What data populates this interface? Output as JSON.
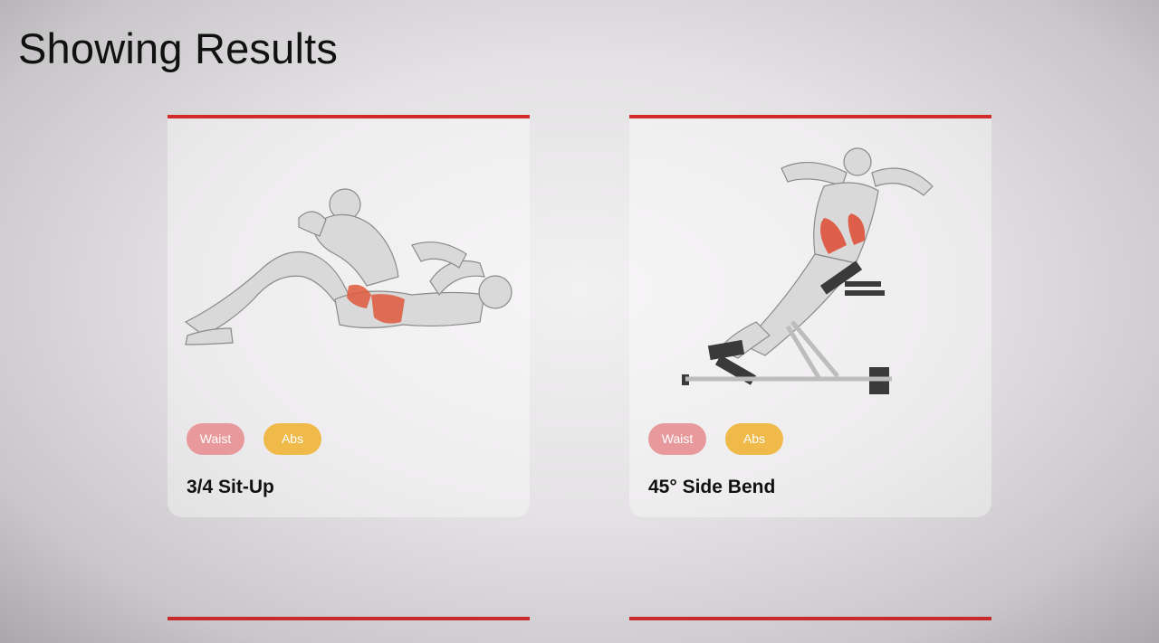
{
  "page": {
    "title": "Showing Results"
  },
  "results": [
    {
      "name": "3/4 Sit-Up",
      "tags": [
        "Waist",
        "Abs"
      ]
    },
    {
      "name": "45° Side Bend",
      "tags": [
        "Waist",
        "Abs"
      ]
    }
  ],
  "colors": {
    "accent_red": "#d12b2b",
    "tag_waist": "#e8999b",
    "tag_abs": "#efba4a"
  }
}
